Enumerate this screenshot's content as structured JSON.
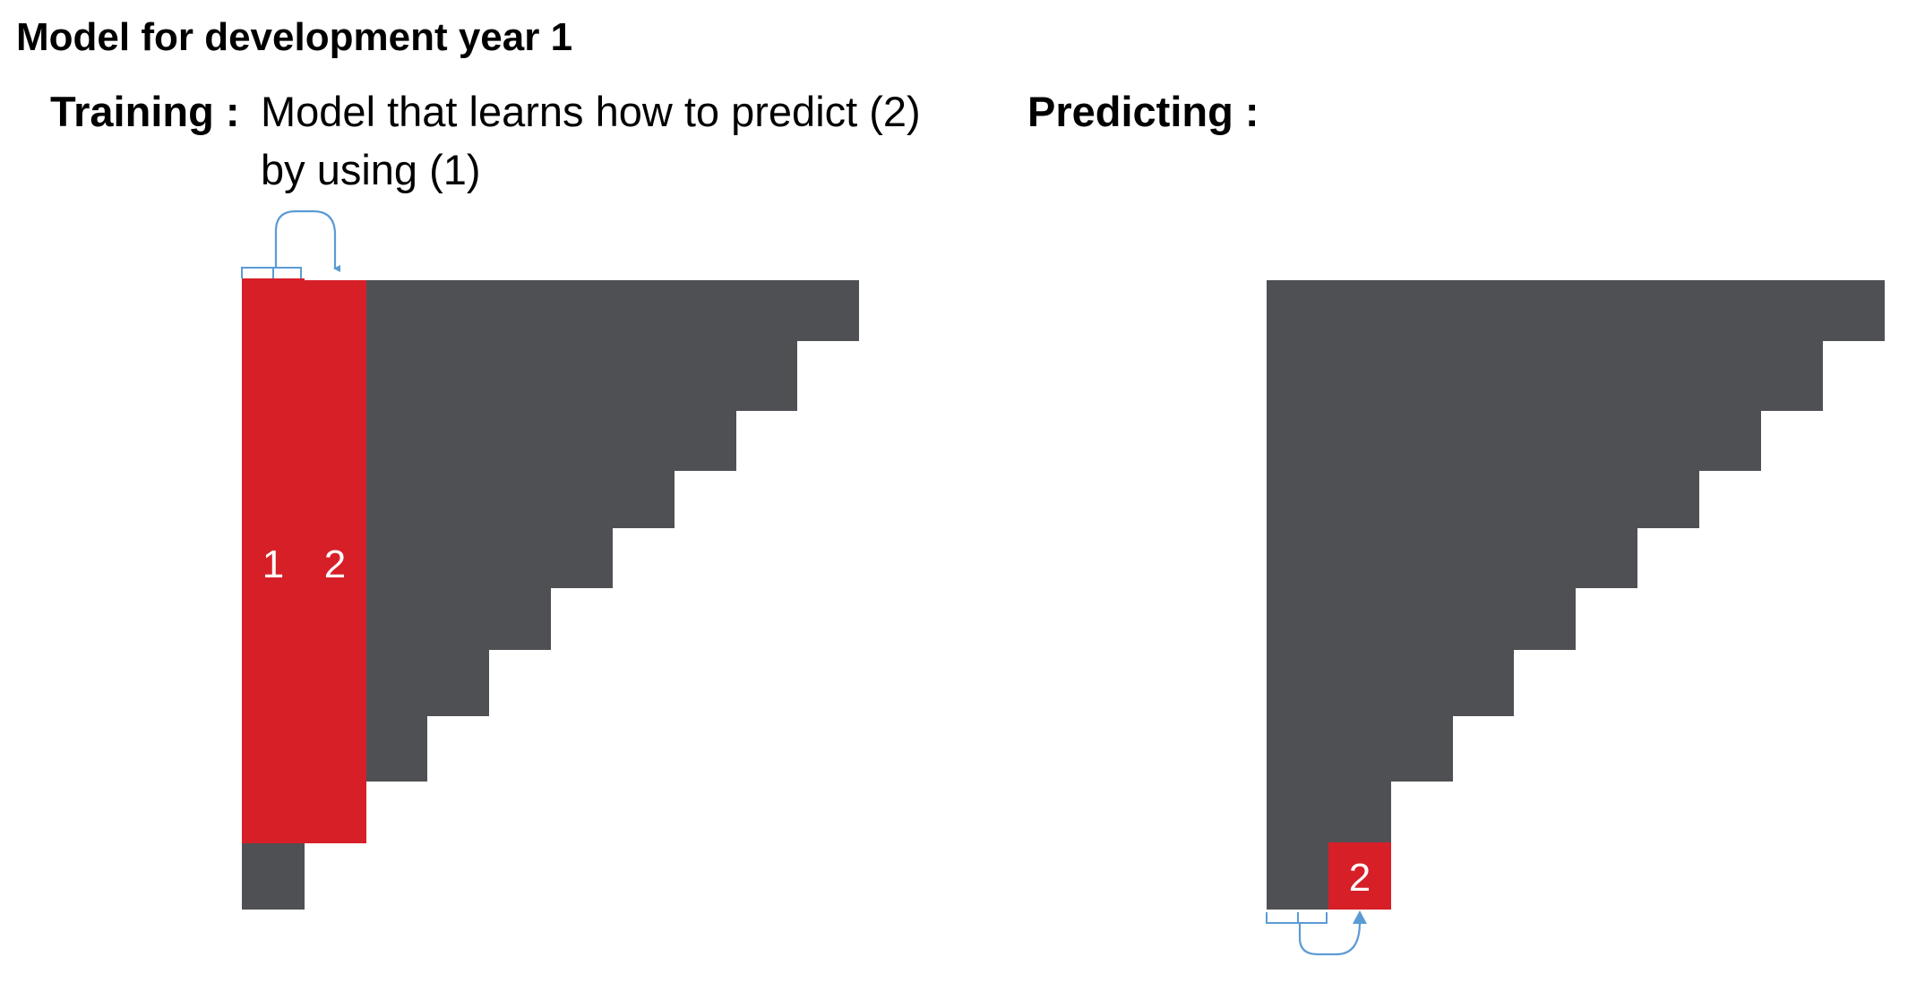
{
  "title": "Model for development year 1",
  "training": {
    "label": "Training :",
    "description_line1": "Model that learns how to predict (2)",
    "description_line2": "by using (1)",
    "col1_label": "1",
    "col2_label": "2"
  },
  "predicting": {
    "label": "Predicting :",
    "cell_label": "2"
  },
  "colors": {
    "triangle": "#4f5054",
    "highlight": "#d71f28",
    "arrow": "#5b9bd5"
  }
}
